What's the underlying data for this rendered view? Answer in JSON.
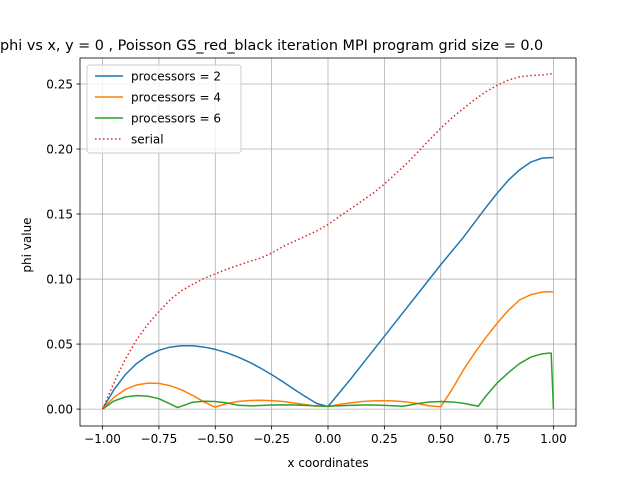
{
  "chart_data": {
    "type": "line",
    "title": "phi vs x, y = 0  , Poisson GS_red_black iteration MPI program grid size = 0.0",
    "xlabel": "x coordinates",
    "ylabel": "phi value",
    "xlim": [
      -1.1,
      1.1
    ],
    "ylim": [
      -0.013,
      0.27
    ],
    "xticks": [
      -1.0,
      -0.75,
      -0.5,
      -0.25,
      0.0,
      0.25,
      0.5,
      0.75,
      1.0
    ],
    "xtick_labels": [
      "−1.00",
      "−0.75",
      "−0.50",
      "−0.25",
      "0.00",
      "0.25",
      "0.50",
      "0.75",
      "1.00"
    ],
    "yticks": [
      0.0,
      0.05,
      0.1,
      0.15,
      0.2,
      0.25
    ],
    "ytick_labels": [
      "0.00",
      "0.05",
      "0.10",
      "0.15",
      "0.20",
      "0.25"
    ],
    "grid": true,
    "legend_position": "top-left",
    "series": [
      {
        "name": "processors = 2",
        "color": "#1f77b4",
        "style": "solid",
        "x": [
          -1.0,
          -0.95,
          -0.9,
          -0.85,
          -0.8,
          -0.75,
          -0.7,
          -0.65,
          -0.6,
          -0.55,
          -0.5,
          -0.45,
          -0.4,
          -0.35,
          -0.3,
          -0.25,
          -0.2,
          -0.15,
          -0.1,
          -0.05,
          0.0,
          0.1,
          0.2,
          0.3,
          0.4,
          0.5,
          0.6,
          0.7,
          0.75,
          0.8,
          0.85,
          0.9,
          0.95,
          1.0
        ],
        "y": [
          0.0,
          0.0148,
          0.0263,
          0.0349,
          0.0411,
          0.0452,
          0.0477,
          0.0487,
          0.0487,
          0.0477,
          0.0459,
          0.0434,
          0.0401,
          0.0362,
          0.0316,
          0.0265,
          0.021,
          0.0152,
          0.0096,
          0.0043,
          0.002,
          0.023,
          0.045,
          0.067,
          0.089,
          0.111,
          0.132,
          0.155,
          0.166,
          0.176,
          0.184,
          0.19,
          0.193,
          0.1935
        ]
      },
      {
        "name": "processors = 4",
        "color": "#ff7f0e",
        "style": "solid",
        "x": [
          -1.0,
          -0.95,
          -0.9,
          -0.85,
          -0.8,
          -0.75,
          -0.7,
          -0.65,
          -0.6,
          -0.55,
          -0.5,
          -0.45,
          -0.4,
          -0.35,
          -0.3,
          -0.25,
          -0.2,
          -0.15,
          -0.1,
          -0.05,
          0.0,
          0.05,
          0.1,
          0.15,
          0.2,
          0.25,
          0.3,
          0.35,
          0.4,
          0.45,
          0.5,
          0.55,
          0.6,
          0.65,
          0.7,
          0.75,
          0.8,
          0.85,
          0.9,
          0.95,
          1.0
        ],
        "y": [
          0.0,
          0.009,
          0.015,
          0.0185,
          0.02,
          0.0198,
          0.018,
          0.0148,
          0.0105,
          0.0055,
          0.0015,
          0.0042,
          0.0058,
          0.0066,
          0.0068,
          0.0065,
          0.0058,
          0.0047,
          0.0034,
          0.0022,
          0.002,
          0.0035,
          0.0048,
          0.0058,
          0.0063,
          0.0065,
          0.0062,
          0.0055,
          0.0042,
          0.0025,
          0.0018,
          0.015,
          0.03,
          0.043,
          0.055,
          0.066,
          0.076,
          0.084,
          0.088,
          0.09,
          0.0902
        ]
      },
      {
        "name": "processors = 6",
        "color": "#2ca02c",
        "style": "solid",
        "x": [
          -1.0,
          -0.95,
          -0.9,
          -0.85,
          -0.8,
          -0.75,
          -0.7,
          -0.667,
          -0.6,
          -0.55,
          -0.5,
          -0.45,
          -0.4,
          -0.333,
          -0.3,
          -0.25,
          -0.2,
          -0.15,
          -0.1,
          -0.05,
          0.0,
          0.05,
          0.1,
          0.15,
          0.2,
          0.25,
          0.3,
          0.333,
          0.4,
          0.45,
          0.5,
          0.55,
          0.6,
          0.667,
          0.7,
          0.75,
          0.8,
          0.85,
          0.9,
          0.95,
          0.98,
          0.99,
          1.0
        ],
        "y": [
          0.0,
          0.0062,
          0.0093,
          0.0104,
          0.01,
          0.008,
          0.004,
          0.0012,
          0.0053,
          0.006,
          0.0058,
          0.0048,
          0.003,
          0.0025,
          0.0028,
          0.0031,
          0.0032,
          0.0031,
          0.0029,
          0.0025,
          0.0022,
          0.0026,
          0.0029,
          0.0031,
          0.0031,
          0.0029,
          0.0025,
          0.0022,
          0.0043,
          0.0055,
          0.0058,
          0.0055,
          0.0045,
          0.0022,
          0.01,
          0.02,
          0.028,
          0.035,
          0.04,
          0.0425,
          0.043,
          0.043,
          0.0
        ]
      },
      {
        "name": "serial",
        "color": "#d62728",
        "style": "dotted",
        "x": [
          -1.0,
          -0.95,
          -0.9,
          -0.85,
          -0.8,
          -0.75,
          -0.7,
          -0.65,
          -0.6,
          -0.55,
          -0.5,
          -0.45,
          -0.4,
          -0.35,
          -0.3,
          -0.25,
          -0.2,
          -0.15,
          -0.1,
          -0.05,
          0.0,
          0.05,
          0.1,
          0.15,
          0.2,
          0.25,
          0.3,
          0.35,
          0.4,
          0.45,
          0.5,
          0.55,
          0.6,
          0.65,
          0.7,
          0.75,
          0.8,
          0.85,
          0.9,
          0.95,
          1.0
        ],
        "y": [
          0.0,
          0.02,
          0.038,
          0.053,
          0.065,
          0.075,
          0.084,
          0.091,
          0.096,
          0.1005,
          0.104,
          0.1075,
          0.1105,
          0.1135,
          0.116,
          0.12,
          0.125,
          0.129,
          0.133,
          0.137,
          0.142,
          0.148,
          0.154,
          0.16,
          0.166,
          0.173,
          0.181,
          0.189,
          0.198,
          0.207,
          0.216,
          0.224,
          0.231,
          0.238,
          0.244,
          0.249,
          0.253,
          0.2555,
          0.2565,
          0.257,
          0.258
        ]
      }
    ]
  }
}
